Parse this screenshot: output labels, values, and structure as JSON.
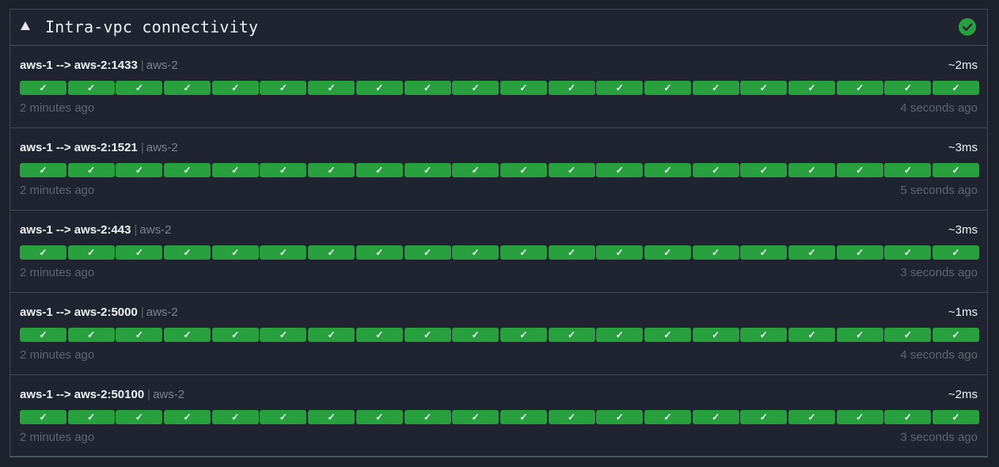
{
  "panel": {
    "title": "Intra-vpc connectivity",
    "status": "healthy",
    "status_color": "#28a03e",
    "collapse_icon": "triangle-up-icon",
    "status_icon": "check-circle-icon"
  },
  "colors": {
    "success": "#28a03e",
    "background": "#1f2430"
  },
  "check_glyph": "✓",
  "endpoints": [
    {
      "name": "aws-1 --> aws-2:1433",
      "separator": "|",
      "group": "aws-2",
      "latency": "~2ms",
      "oldest": "2 minutes ago",
      "newest": "4 seconds ago",
      "results": [
        "success",
        "success",
        "success",
        "success",
        "success",
        "success",
        "success",
        "success",
        "success",
        "success",
        "success",
        "success",
        "success",
        "success",
        "success",
        "success",
        "success",
        "success",
        "success",
        "success"
      ]
    },
    {
      "name": "aws-1 --> aws-2:1521",
      "separator": "|",
      "group": "aws-2",
      "latency": "~3ms",
      "oldest": "2 minutes ago",
      "newest": "5 seconds ago",
      "results": [
        "success",
        "success",
        "success",
        "success",
        "success",
        "success",
        "success",
        "success",
        "success",
        "success",
        "success",
        "success",
        "success",
        "success",
        "success",
        "success",
        "success",
        "success",
        "success",
        "success"
      ]
    },
    {
      "name": "aws-1 --> aws-2:443",
      "separator": "|",
      "group": "aws-2",
      "latency": "~3ms",
      "oldest": "2 minutes ago",
      "newest": "3 seconds ago",
      "results": [
        "success",
        "success",
        "success",
        "success",
        "success",
        "success",
        "success",
        "success",
        "success",
        "success",
        "success",
        "success",
        "success",
        "success",
        "success",
        "success",
        "success",
        "success",
        "success",
        "success"
      ]
    },
    {
      "name": "aws-1 --> aws-2:5000",
      "separator": "|",
      "group": "aws-2",
      "latency": "~1ms",
      "oldest": "2 minutes ago",
      "newest": "4 seconds ago",
      "results": [
        "success",
        "success",
        "success",
        "success",
        "success",
        "success",
        "success",
        "success",
        "success",
        "success",
        "success",
        "success",
        "success",
        "success",
        "success",
        "success",
        "success",
        "success",
        "success",
        "success"
      ]
    },
    {
      "name": "aws-1 --> aws-2:50100",
      "separator": "|",
      "group": "aws-2",
      "latency": "~2ms",
      "oldest": "2 minutes ago",
      "newest": "3 seconds ago",
      "results": [
        "success",
        "success",
        "success",
        "success",
        "success",
        "success",
        "success",
        "success",
        "success",
        "success",
        "success",
        "success",
        "success",
        "success",
        "success",
        "success",
        "success",
        "success",
        "success",
        "success"
      ]
    }
  ]
}
